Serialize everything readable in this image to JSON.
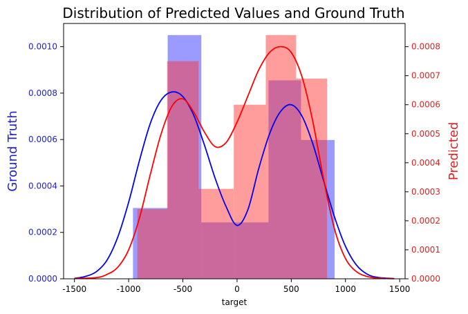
{
  "chart_data": {
    "type": "histogram",
    "title": "Distribution of Predicted Values and Ground Truth",
    "xlabel": "target",
    "xlim": [
      -1600,
      1550
    ],
    "xticks": [
      -1500,
      -1000,
      -500,
      0,
      500,
      1000,
      1500
    ],
    "xtick_labels": [
      "-1500",
      "-1000",
      "-500",
      "0",
      "500",
      "1000",
      "1500"
    ],
    "left_axis": {
      "label": "Ground Truth",
      "color": "#2020cc",
      "ylim": [
        0,
        0.0011
      ],
      "ticks": [
        0,
        0.0002,
        0.0004,
        0.0006,
        0.0008,
        0.001
      ],
      "tick_labels": [
        "0.0000",
        "0.0002",
        "0.0004",
        "0.0006",
        "0.0008",
        "0.0010"
      ]
    },
    "right_axis": {
      "label": "Predicted",
      "color": "#dd2222",
      "ylim": [
        0,
        0.00088
      ],
      "ticks": [
        0,
        0.0001,
        0.0002,
        0.0003,
        0.0004,
        0.0005,
        0.0006,
        0.0007,
        0.0008
      ],
      "tick_labels": [
        "0.0000",
        "0.0001",
        "0.0002",
        "0.0003",
        "0.0004",
        "0.0005",
        "0.0006",
        "0.0007",
        "0.0008"
      ]
    },
    "series": [
      {
        "name": "Ground Truth",
        "axis": "left",
        "bar_color": "#4040ff",
        "bar_opacity": 0.52,
        "kde_color": "#0000ee",
        "bins": [
          {
            "x0": -960,
            "x1": -640,
            "value": 0.000305
          },
          {
            "x0": -640,
            "x1": -330,
            "value": 0.00105
          },
          {
            "x0": -330,
            "x1": -20,
            "value": 0.000243
          },
          {
            "x0": -20,
            "x1": 290,
            "value": 0.000243
          },
          {
            "x0": 290,
            "x1": 590,
            "value": 0.000855
          },
          {
            "x0": 590,
            "x1": 900,
            "value": 0.000598
          }
        ],
        "kde": [
          [
            -1500,
            2e-06
          ],
          [
            -1400,
            1e-05
          ],
          [
            -1300,
            3e-05
          ],
          [
            -1200,
            8e-05
          ],
          [
            -1100,
            0.00018
          ],
          [
            -1000,
            0.00033
          ],
          [
            -900,
            0.00051
          ],
          [
            -800,
            0.00067
          ],
          [
            -700,
            0.00077
          ],
          [
            -600,
            0.000805
          ],
          [
            -500,
            0.000785
          ],
          [
            -400,
            0.000705
          ],
          [
            -300,
            0.000575
          ],
          [
            -200,
            0.00043
          ],
          [
            -100,
            0.00031
          ],
          [
            0,
            0.00023
          ],
          [
            100,
            0.000298
          ],
          [
            200,
            0.000475
          ],
          [
            300,
            0.000625
          ],
          [
            400,
            0.00072
          ],
          [
            500,
            0.00075
          ],
          [
            600,
            0.0007
          ],
          [
            700,
            0.00058
          ],
          [
            800,
            0.00042
          ],
          [
            900,
            0.000265
          ],
          [
            1000,
            0.00014
          ],
          [
            1100,
            6e-05
          ],
          [
            1200,
            2e-05
          ],
          [
            1300,
            6e-06
          ],
          [
            1450,
            1e-06
          ]
        ]
      },
      {
        "name": "Predicted",
        "axis": "right",
        "bar_color": "#ff3030",
        "bar_opacity": 0.48,
        "kde_color": "#ff0000",
        "bins": [
          {
            "x0": -920,
            "x1": -645,
            "value": 0.00024
          },
          {
            "x0": -645,
            "x1": -355,
            "value": 0.00075
          },
          {
            "x0": -355,
            "x1": -30,
            "value": 0.00031
          },
          {
            "x0": -30,
            "x1": 265,
            "value": 0.0006
          },
          {
            "x0": 265,
            "x1": 545,
            "value": 0.00084
          },
          {
            "x0": 545,
            "x1": 830,
            "value": 0.00069
          }
        ],
        "kde": [
          [
            -1500,
            1e-06
          ],
          [
            -1300,
            4e-06
          ],
          [
            -1200,
            1.5e-05
          ],
          [
            -1100,
            4e-05
          ],
          [
            -1000,
            0.0001
          ],
          [
            -900,
            0.00021
          ],
          [
            -800,
            0.00036
          ],
          [
            -700,
            0.0005
          ],
          [
            -600,
            0.000595
          ],
          [
            -500,
            0.00062
          ],
          [
            -400,
            0.000575
          ],
          [
            -300,
            0.000505
          ],
          [
            -200,
            0.000455
          ],
          [
            -100,
            0.00047
          ],
          [
            0,
            0.00054
          ],
          [
            100,
            0.00063
          ],
          [
            200,
            0.00072
          ],
          [
            300,
            0.00078
          ],
          [
            400,
            0.0008
          ],
          [
            500,
            0.00078
          ],
          [
            600,
            0.000695
          ],
          [
            700,
            0.00054
          ],
          [
            800,
            0.00034
          ],
          [
            900,
            0.00017
          ],
          [
            1000,
            7e-05
          ],
          [
            1100,
            2.5e-05
          ],
          [
            1200,
            8e-06
          ],
          [
            1300,
            2e-06
          ],
          [
            1450,
            5e-07
          ]
        ]
      }
    ]
  }
}
